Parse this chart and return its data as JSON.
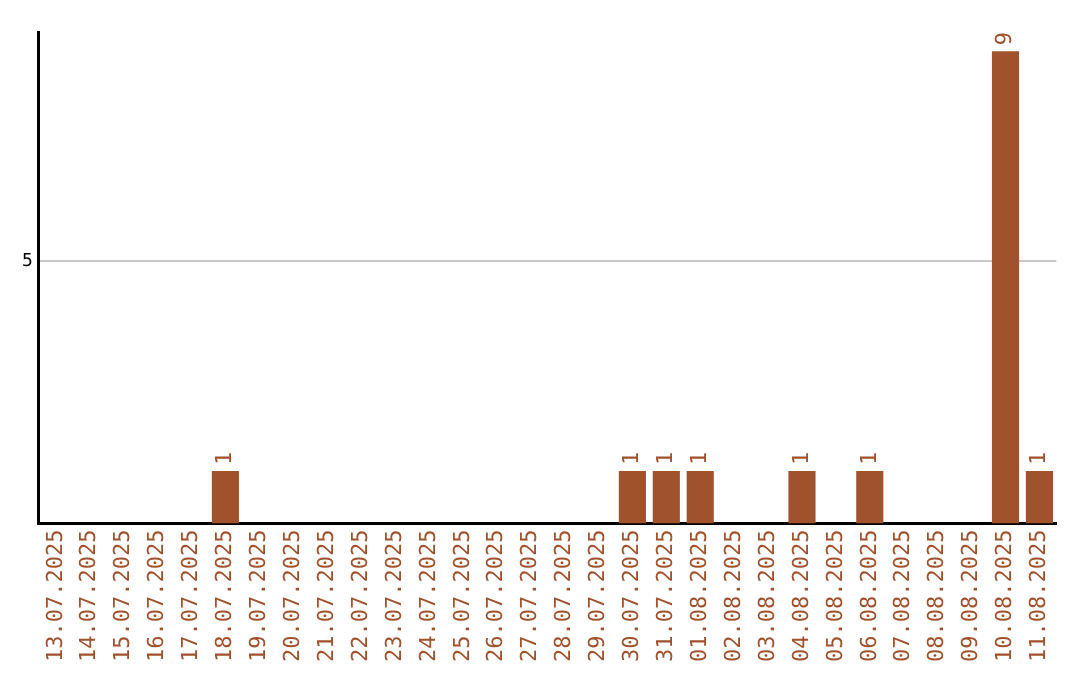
{
  "chart_data": {
    "type": "bar",
    "categories": [
      "13.07.2025",
      "14.07.2025",
      "15.07.2025",
      "16.07.2025",
      "17.07.2025",
      "18.07.2025",
      "19.07.2025",
      "20.07.2025",
      "21.07.2025",
      "22.07.2025",
      "23.07.2025",
      "24.07.2025",
      "25.07.2025",
      "26.07.2025",
      "27.07.2025",
      "28.07.2025",
      "29.07.2025",
      "30.07.2025",
      "31.07.2025",
      "01.08.2025",
      "02.08.2025",
      "03.08.2025",
      "04.08.2025",
      "05.08.2025",
      "06.08.2025",
      "07.08.2025",
      "08.08.2025",
      "09.08.2025",
      "10.08.2025",
      "11.08.2025"
    ],
    "values": [
      0,
      0,
      0,
      0,
      0,
      1,
      0,
      0,
      0,
      0,
      0,
      0,
      0,
      0,
      0,
      0,
      0,
      1,
      1,
      1,
      0,
      0,
      1,
      0,
      1,
      0,
      0,
      0,
      9,
      1
    ],
    "value_labels": [
      null,
      null,
      null,
      null,
      null,
      "1",
      null,
      null,
      null,
      null,
      null,
      null,
      null,
      null,
      null,
      null,
      null,
      "1",
      "1",
      "1",
      null,
      null,
      "1",
      null,
      "1",
      null,
      null,
      null,
      "9",
      "1"
    ],
    "color": "#a0522d",
    "ylim": [
      0,
      9.35
    ],
    "yticks": [
      5
    ],
    "grid": "y",
    "legend": false
  }
}
